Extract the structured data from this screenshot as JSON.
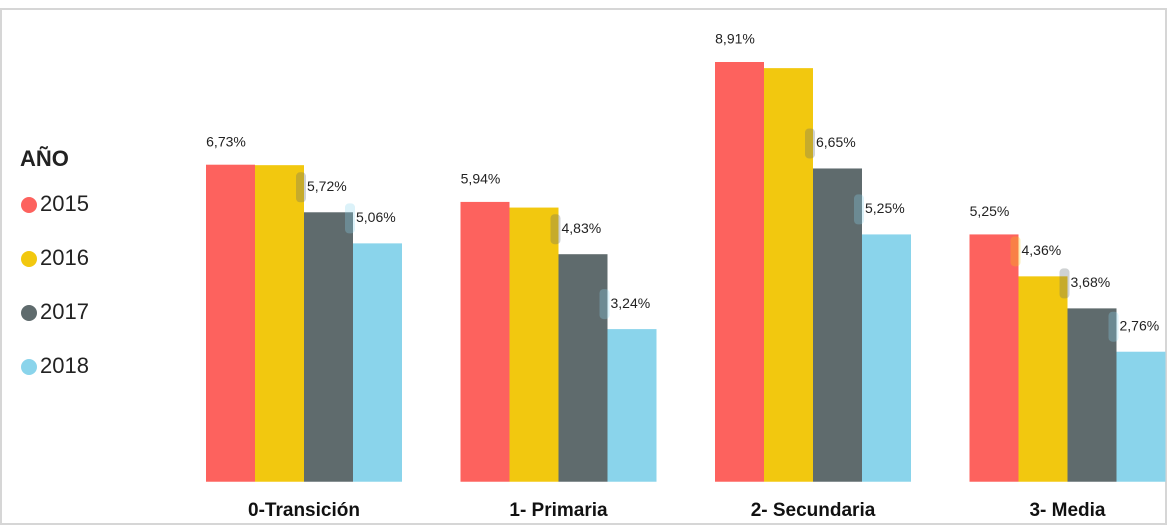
{
  "chart_data": {
    "type": "bar",
    "legend_title": "AÑO",
    "legend_position": "left",
    "categories": [
      "0-Transición",
      "1- Primaria",
      "2- Secundaria",
      "3- Media"
    ],
    "series": [
      {
        "name": "2015",
        "color": "#fd625e",
        "values": [
          6.73,
          5.94,
          8.91,
          5.25
        ],
        "value_labels": [
          "6,73%",
          "5,94%",
          "8,91%",
          "5,25%"
        ]
      },
      {
        "name": "2016",
        "color": "#f2c80f",
        "values": [
          6.72,
          5.82,
          8.78,
          4.36
        ],
        "value_labels": [
          null,
          null,
          null,
          "4,36%"
        ]
      },
      {
        "name": "2017",
        "color": "#5f6b6d",
        "values": [
          5.72,
          4.83,
          6.65,
          3.68
        ],
        "value_labels": [
          "5,72%",
          "4,83%",
          "6,65%",
          "3,68%"
        ]
      },
      {
        "name": "2018",
        "color": "#8ad4eb",
        "values": [
          5.06,
          3.24,
          5.25,
          2.76
        ],
        "value_labels": [
          "5,06%",
          "3,24%",
          "5,25%",
          "2,76%"
        ]
      }
    ],
    "ylim": [
      -0.6,
      9.6
    ]
  }
}
